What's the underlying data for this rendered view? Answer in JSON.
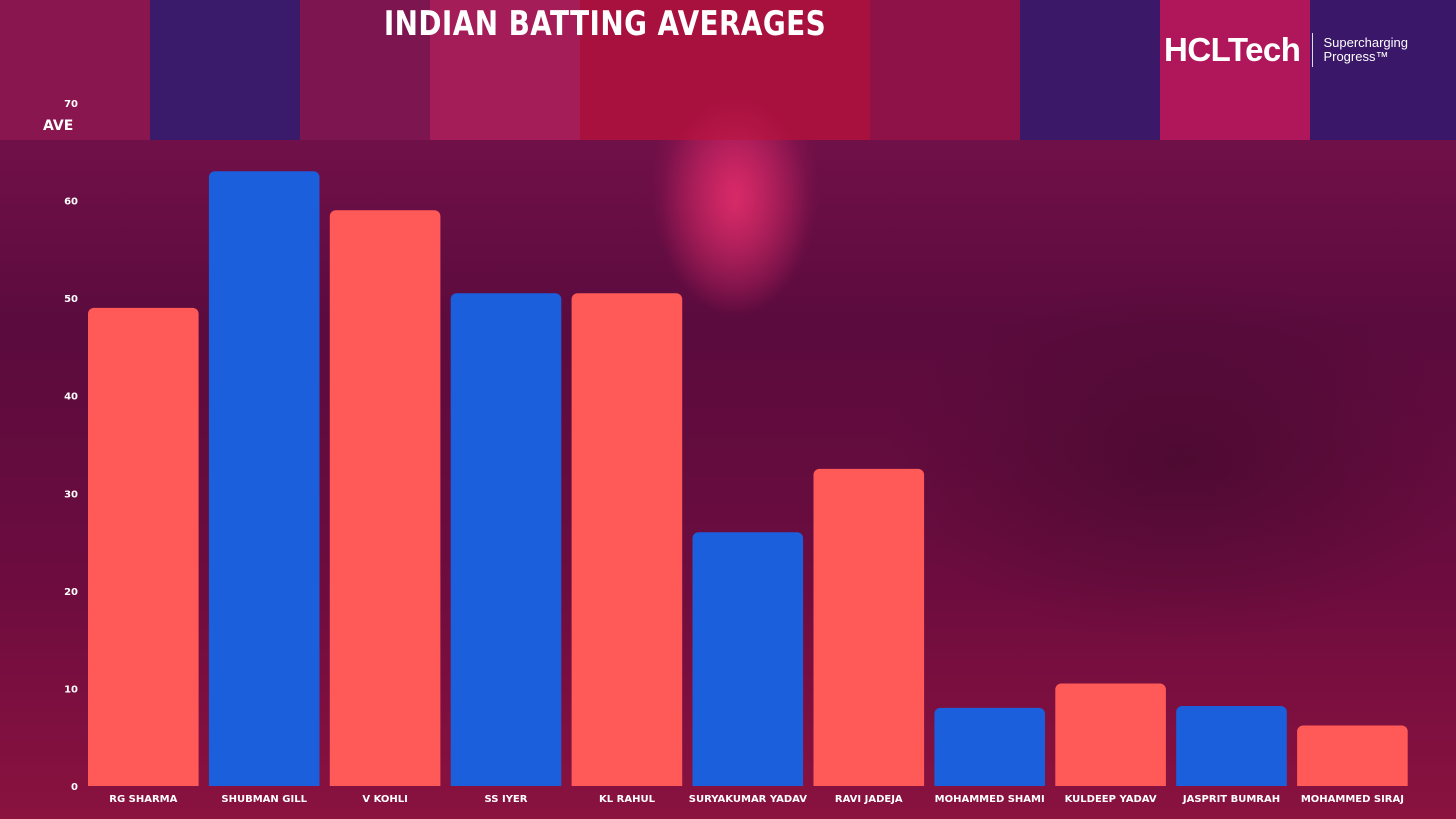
{
  "title": "INDIAN BATTING AVERAGES",
  "logo": {
    "name": "HCLTech",
    "tagline_line1": "Supercharging",
    "tagline_line2": "Progress™"
  },
  "colors": {
    "coral": "#ff5a57",
    "blue": "#1c5fdc"
  },
  "chart_data": {
    "type": "bar",
    "title": "INDIAN BATTING AVERAGES",
    "xlabel": "",
    "ylabel": "AVE",
    "ylim": [
      0,
      70
    ],
    "yticks": [
      0,
      10,
      20,
      30,
      40,
      50,
      60,
      70
    ],
    "grid": false,
    "legend": "none",
    "categories": [
      "RG SHARMA",
      "SHUBMAN GILL",
      "V KOHLI",
      "SS IYER",
      "KL RAHUL",
      "SURYAKUMAR YADAV",
      "RAVI JADEJA",
      "MOHAMMED SHAMI",
      "KULDEEP YADAV",
      "JASPRIT BUMRAH",
      "MOHAMMED SIRAJ"
    ],
    "values": [
      49,
      63,
      59,
      50.5,
      50.5,
      26,
      32.5,
      8,
      10.5,
      8.2,
      6.2
    ],
    "bar_colors": [
      "#ff5a57",
      "#1c5fdc",
      "#ff5a57",
      "#1c5fdc",
      "#ff5a57",
      "#1c5fdc",
      "#ff5a57",
      "#1c5fdc",
      "#ff5a57",
      "#1c5fdc",
      "#ff5a57"
    ]
  }
}
